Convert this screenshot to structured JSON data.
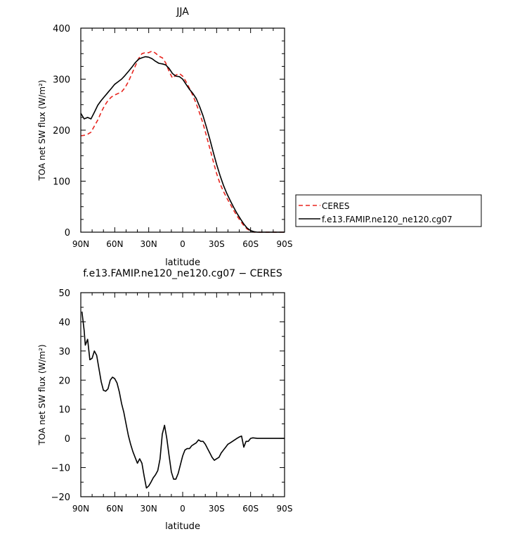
{
  "chart_data": [
    {
      "type": "line",
      "title": "JJA",
      "xlabel": "latitude",
      "ylabel": "TOA net SW flux (W/m²)",
      "x_axis": "latitude, 90N (left) to 90S (right); N positive",
      "xlim": [
        90,
        -90
      ],
      "ylim": [
        0,
        400
      ],
      "x_ticks": [
        90,
        60,
        30,
        0,
        -30,
        -60,
        -90
      ],
      "x_tick_labels": [
        "90N",
        "60N",
        "30N",
        "0",
        "30S",
        "60S",
        "90S"
      ],
      "y_ticks": [
        0,
        100,
        200,
        300,
        400
      ],
      "y_tick_labels": [
        "0",
        "100",
        "200",
        "300",
        "400"
      ],
      "grid": false,
      "legend": "right, outside plot",
      "series": [
        {
          "name": "CERES",
          "color": "#e8251f",
          "dash": "dashed",
          "x": [
            90,
            87,
            84,
            81,
            78,
            75,
            72,
            69,
            66,
            63,
            60,
            57,
            54,
            51,
            48,
            45,
            42,
            39,
            36,
            33,
            30,
            27,
            24,
            21,
            18,
            15,
            12,
            9,
            6,
            3,
            0,
            -3,
            -6,
            -9,
            -12,
            -15,
            -18,
            -21,
            -24,
            -27,
            -30,
            -33,
            -36,
            -39,
            -42,
            -45,
            -48,
            -51,
            -54,
            -57,
            -60,
            -63,
            -66,
            -69,
            -72,
            -75,
            -78,
            -81,
            -84,
            -87,
            -90
          ],
          "values": [
            189,
            190,
            192,
            196,
            208,
            220,
            235,
            248,
            258,
            265,
            269,
            272,
            275,
            283,
            295,
            310,
            325,
            340,
            350,
            352,
            352,
            355,
            351,
            345,
            342,
            332,
            315,
            302,
            308,
            311,
            306,
            295,
            282,
            268,
            252,
            233,
            213,
            189,
            164,
            139,
            115,
            95,
            80,
            67,
            55,
            43,
            32,
            22,
            13,
            6,
            2,
            0,
            0,
            0,
            0,
            0,
            0,
            0,
            0,
            0,
            0
          ]
        },
        {
          "name": "f.e13.FAMIP.ne120_ne120.cg07",
          "color": "#000000",
          "dash": "solid",
          "x": [
            90,
            87,
            84,
            81,
            78,
            75,
            72,
            69,
            66,
            63,
            60,
            57,
            54,
            51,
            48,
            45,
            42,
            39,
            36,
            33,
            30,
            27,
            24,
            21,
            18,
            15,
            12,
            9,
            6,
            3,
            0,
            -3,
            -6,
            -9,
            -12,
            -15,
            -18,
            -21,
            -24,
            -27,
            -30,
            -33,
            -36,
            -39,
            -42,
            -45,
            -48,
            -51,
            -54,
            -57,
            -60,
            -63,
            -66,
            -69,
            -72,
            -75,
            -78,
            -81,
            -84,
            -87,
            -90
          ],
          "values": [
            233,
            222,
            225,
            222,
            235,
            249,
            258,
            266,
            274,
            282,
            290,
            295,
            300,
            307,
            315,
            323,
            332,
            339,
            342,
            344,
            343,
            340,
            335,
            331,
            330,
            328,
            321,
            311,
            306,
            305,
            300,
            290,
            280,
            272,
            262,
            246,
            228,
            206,
            182,
            157,
            133,
            111,
            92,
            76,
            62,
            49,
            37,
            26,
            16,
            8,
            3,
            1,
            0,
            0,
            0,
            0,
            0,
            0,
            0,
            0,
            0
          ]
        }
      ]
    },
    {
      "type": "line",
      "title": "f.e13.FAMIP.ne120_ne120.cg07 − CERES",
      "xlabel": "latitude",
      "ylabel": "TOA net SW flux (W/m²)",
      "x_axis": "latitude, 90N (left) to 90S (right); N positive",
      "xlim": [
        90,
        -90
      ],
      "ylim": [
        -20,
        50
      ],
      "x_ticks": [
        90,
        60,
        30,
        0,
        -30,
        -60,
        -90
      ],
      "x_tick_labels": [
        "90N",
        "60N",
        "30N",
        "0",
        "30S",
        "60S",
        "90S"
      ],
      "y_ticks": [
        -20,
        -10,
        0,
        10,
        20,
        30,
        40,
        50
      ],
      "y_tick_labels": [
        "−20",
        "−10",
        "0",
        "10",
        "20",
        "30",
        "40",
        "50"
      ],
      "grid": false,
      "series": [
        {
          "color": "#000000",
          "dash": "solid",
          "x": [
            89,
            87,
            86,
            84,
            82,
            80,
            78,
            76,
            74,
            72,
            70,
            68,
            66,
            64,
            62,
            60,
            58,
            56,
            54,
            52,
            50,
            48,
            46,
            44,
            42,
            40,
            38,
            36,
            34,
            32,
            30,
            28,
            26,
            24,
            22,
            20,
            18,
            16,
            14,
            12,
            10,
            8,
            6,
            4,
            2,
            0,
            -2,
            -4,
            -6,
            -8,
            -10,
            -12,
            -14,
            -16,
            -18,
            -20,
            -22,
            -24,
            -26,
            -28,
            -30,
            -32,
            -34,
            -36,
            -38,
            -40,
            -42,
            -44,
            -46,
            -48,
            -50,
            -52,
            -54,
            -56,
            -58,
            -60,
            -62,
            -64,
            -66,
            -68,
            -70,
            -72,
            -74,
            -76,
            -78,
            -80,
            -82,
            -84,
            -86,
            -88,
            -90
          ],
          "values": [
            43.5,
            37,
            32,
            34,
            27,
            27.5,
            30,
            28.5,
            24,
            19.5,
            16.5,
            16.2,
            17,
            20,
            21,
            20.5,
            19,
            16,
            12,
            9,
            5,
            1,
            -2,
            -4.5,
            -6.5,
            -8.5,
            -7,
            -8.5,
            -13,
            -17,
            -16.3,
            -15,
            -13.5,
            -12.5,
            -11,
            -7,
            1.5,
            4.5,
            0,
            -6,
            -11.5,
            -14,
            -14,
            -12,
            -9,
            -6,
            -4,
            -3.5,
            -3.5,
            -2.5,
            -2,
            -1.5,
            -0.5,
            -1,
            -1,
            -2,
            -3.5,
            -5,
            -6.5,
            -7.5,
            -7,
            -6.5,
            -5,
            -4,
            -3,
            -2,
            -1.5,
            -1,
            -0.5,
            0,
            0.5,
            0.8,
            -3,
            -1,
            -1,
            0,
            0.2,
            0.1,
            0,
            0,
            0,
            0,
            0,
            0,
            0,
            0,
            0,
            0,
            0,
            0,
            0
          ]
        }
      ]
    }
  ]
}
